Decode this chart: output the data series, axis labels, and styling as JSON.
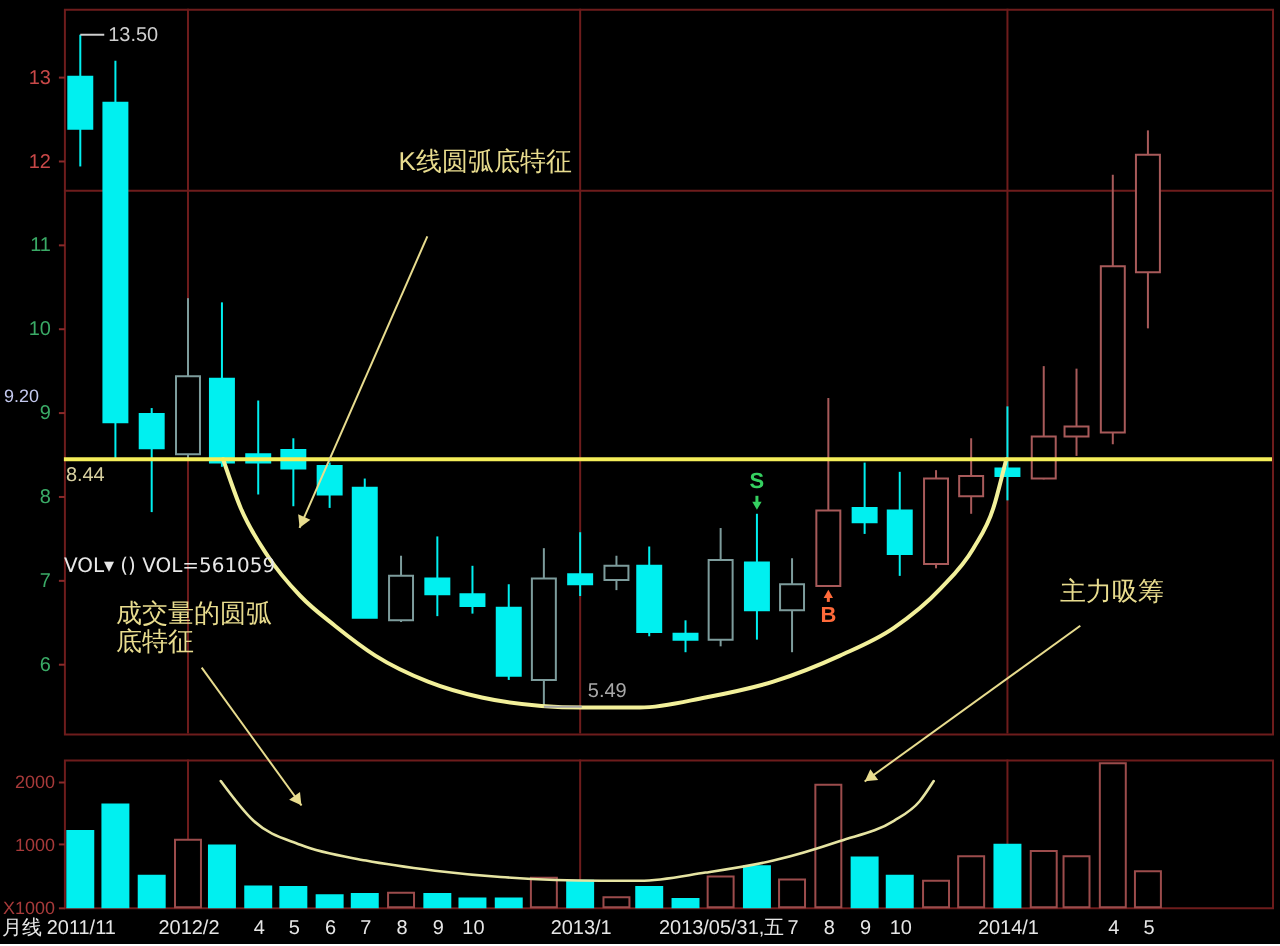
{
  "chart_data": [
    {
      "type": "candlestick",
      "x": [
        "2011-11",
        "2011-12",
        "2012-01",
        "2012-02",
        "2012-03",
        "2012-04",
        "2012-05",
        "2012-06",
        "2012-07",
        "2012-08",
        "2012-09",
        "2012-10",
        "2012-11",
        "2012-12",
        "2013-01",
        "2013-02",
        "2013-03",
        "2013-04",
        "2013-05",
        "2013-06",
        "2013-07",
        "2013-08",
        "2013-09",
        "2013-10",
        "2013-11",
        "2013-12",
        "2014-01",
        "2014-02",
        "2014-03",
        "2014-04",
        "2014-05"
      ],
      "series": [
        {
          "ohlc": [
            [
              13.0,
              13.5,
              11.93,
              12.38
            ],
            [
              12.69,
              13.19,
              8.45,
              8.88
            ],
            [
              8.98,
              9.05,
              7.81,
              8.57
            ],
            [
              8.5,
              10.36,
              8.45,
              9.43
            ],
            [
              9.4,
              10.31,
              8.35,
              8.4
            ],
            [
              8.5,
              9.14,
              8.02,
              8.4
            ],
            [
              8.55,
              8.69,
              7.88,
              8.33
            ],
            [
              8.36,
              8.4,
              7.86,
              8.02
            ],
            [
              8.1,
              8.21,
              6.55,
              6.55
            ],
            [
              6.52,
              7.29,
              6.5,
              7.05
            ],
            [
              7.02,
              7.52,
              6.57,
              6.83
            ],
            [
              6.83,
              7.17,
              6.6,
              6.69
            ],
            [
              6.67,
              6.95,
              5.81,
              5.86
            ],
            [
              5.81,
              7.38,
              5.49,
              7.02
            ],
            [
              7.07,
              7.57,
              6.81,
              6.95
            ],
            [
              7.0,
              7.29,
              6.88,
              7.17
            ],
            [
              7.17,
              7.4,
              6.33,
              6.38
            ],
            [
              6.36,
              6.52,
              6.14,
              6.29
            ],
            [
              6.29,
              7.62,
              6.21,
              7.24
            ],
            [
              7.21,
              7.79,
              6.29,
              6.64
            ],
            [
              6.64,
              7.26,
              6.14,
              6.95
            ],
            [
              6.93,
              9.17,
              6.93,
              7.83
            ],
            [
              7.86,
              8.4,
              7.55,
              7.69
            ],
            [
              7.83,
              8.29,
              7.05,
              7.31
            ],
            [
              7.19,
              8.31,
              7.14,
              8.21
            ],
            [
              8.0,
              8.69,
              7.79,
              8.24
            ],
            [
              8.33,
              9.07,
              7.95,
              8.24
            ],
            [
              8.21,
              9.55,
              8.2,
              8.71
            ],
            [
              8.71,
              9.52,
              8.48,
              8.83
            ],
            [
              8.76,
              11.83,
              8.62,
              10.74
            ],
            [
              10.67,
              12.36,
              10.0,
              12.07
            ]
          ],
          "colors": [
            "#00f0f0",
            "#00f0f0",
            "#00f0f0",
            "#7d9c9c",
            "#00f0f0",
            "#00f0f0",
            "#00f0f0",
            "#00f0f0",
            "#00f0f0",
            "#7d9c9c",
            "#00f0f0",
            "#00f0f0",
            "#00f0f0",
            "#7d9c9c",
            "#00f0f0",
            "#7d9c9c",
            "#00f0f0",
            "#00f0f0",
            "#7d9c9c",
            "#00f0f0",
            "#7d9c9c",
            "#a85a5a",
            "#00f0f0",
            "#00f0f0",
            "#a85a5a",
            "#a85a5a",
            "#00f0f0",
            "#a85a5a",
            "#a85a5a",
            "#a85a5a",
            "#a85a5a"
          ]
        },
        {
          "type": "line",
          "x": [
            "2012-03-02",
            "2012-03-17",
            "2012-04-09",
            "2012-05-07",
            "2012-06-06",
            "2012-07-10",
            "2012-08-24",
            "2012-10-09",
            "2012-11-29",
            "2013-01-03",
            "2013-02-21",
            "2013-04-18",
            "2013-06-15",
            "2013-08-11",
            "2013-09-26",
            "2013-11-05",
            "2013-12-03",
            "2013-12-20",
            "2013-12-29",
            "2013-12-31"
          ],
          "values": [
            8.44,
            7.86,
            7.29,
            6.81,
            6.45,
            6.1,
            5.79,
            5.6,
            5.5,
            5.48,
            5.48,
            5.6,
            5.79,
            6.1,
            6.43,
            6.9,
            7.38,
            7.86,
            8.33,
            8.44
          ],
          "color": "#f2f09a"
        }
      ],
      "xlim": [
        "2011-10-18",
        "2014-08-15"
      ],
      "ylim": [
        5.17,
        13.81
      ],
      "yticks": [
        6,
        7,
        8,
        9,
        10,
        11,
        12,
        13
      ],
      "tick_labels": "y",
      "ref_lines": [
        {
          "axis": "y",
          "value": 11.64,
          "color": "#6e1c1c"
        },
        {
          "axis": "x",
          "value": "2012-02",
          "color": "#6e1c1c"
        },
        {
          "axis": "x",
          "value": "2013-01",
          "color": "#6e1c1c"
        },
        {
          "axis": "x",
          "value": "2014-01",
          "color": "#6e1c1c"
        },
        {
          "axis": "y",
          "value": 8.44,
          "label": "8.44",
          "color": "#f5ee5a"
        }
      ],
      "annotations": [
        {
          "text": "13.50",
          "x": "2011-11",
          "y": 13.5
        },
        "K线圆弧底特征",
        "9.20",
        {
          "text": "S",
          "x": "2013-06",
          "y": 7.79
        },
        {
          "text": "B",
          "x": "2013-08",
          "y": 6.93
        },
        {
          "text": "5.49",
          "x": "2012-12",
          "y": 5.49
        }
      ]
    },
    {
      "type": "bar",
      "title": "VOL▾ () VOL=561059",
      "x": [
        "2011-11",
        "2011-12",
        "2012-01",
        "2012-02",
        "2012-03",
        "2012-04",
        "2012-05",
        "2012-06",
        "2012-07",
        "2012-08",
        "2012-09",
        "2012-10",
        "2012-11",
        "2012-12",
        "2013-01",
        "2013-02",
        "2013-03",
        "2013-04",
        "2013-05",
        "2013-06",
        "2013-07",
        "2013-08",
        "2013-09",
        "2013-10",
        "2013-11",
        "2013-12",
        "2014-01",
        "2014-02",
        "2014-03",
        "2014-04",
        "2014-05"
      ],
      "series": [
        {
          "values": [
            1210,
            1630,
            500,
            1070,
            980,
            330,
            320,
            190,
            210,
            230,
            210,
            140,
            140,
            470,
            420,
            160,
            320,
            130,
            490,
            650,
            440,
            1940,
            790,
            500,
            420,
            810,
            990,
            890,
            810,
            2280,
            570
          ],
          "colors": [
            "#00f0f0",
            "#00f0f0",
            "#00f0f0",
            "#9c4c4c",
            "#00f0f0",
            "#00f0f0",
            "#00f0f0",
            "#00f0f0",
            "#00f0f0",
            "#9c4c4c",
            "#00f0f0",
            "#00f0f0",
            "#00f0f0",
            "#9c4c4c",
            "#00f0f0",
            "#9c4c4c",
            "#00f0f0",
            "#00f0f0",
            "#9c4c4c",
            "#00f0f0",
            "#9c4c4c",
            "#9c4c4c",
            "#00f0f0",
            "#00f0f0",
            "#9c4c4c",
            "#9c4c4c",
            "#00f0f0",
            "#9c4c4c",
            "#9c4c4c",
            "#9c4c4c",
            "#9c4c4c"
          ]
        },
        {
          "type": "line",
          "x": [
            "2012-02-29",
            "2012-03-28",
            "2012-05-07",
            "2012-07-02",
            "2012-08-30",
            "2012-10-25",
            "2013-01-19",
            "2013-02-21",
            "2013-04-18",
            "2013-06-15",
            "2013-08-11",
            "2013-09-26",
            "2013-10-18",
            "2013-10-30"
          ],
          "values": [
            2000,
            1370,
            990,
            740,
            580,
            480,
            420,
            420,
            550,
            740,
            1050,
            1370,
            1680,
            2000
          ],
          "color": "#e6e4a2"
        }
      ],
      "xlim": [
        "2011-10-18",
        "2014-08-15"
      ],
      "xticks": [
        {
          "value": "2011-11",
          "label": "2011/11"
        },
        {
          "value": "2012-02",
          "label": "2012/2"
        },
        {
          "value": "2012-04",
          "label": "4"
        },
        {
          "value": "2012-05",
          "label": "5"
        },
        {
          "value": "2012-06",
          "label": "6"
        },
        {
          "value": "2012-07",
          "label": "7"
        },
        {
          "value": "2012-08",
          "label": "8"
        },
        {
          "value": "2012-09",
          "label": "9"
        },
        {
          "value": "2012-10",
          "label": "10"
        },
        {
          "value": "2013-01",
          "label": "2013/1"
        },
        {
          "value": "2013-05",
          "label": "2013/05/31,五"
        },
        {
          "value": "2013-07",
          "label": "7"
        },
        {
          "value": "2013-08",
          "label": "8"
        },
        {
          "value": "2013-09",
          "label": "9"
        },
        {
          "value": "2013-10",
          "label": "10"
        },
        {
          "value": "2014-01",
          "label": "2014/1"
        },
        {
          "value": "2014-04",
          "label": "4"
        },
        {
          "value": "2014-05",
          "label": "5"
        }
      ],
      "ylim": [
        0,
        2340
      ],
      "yticks": [
        {
          "value": 0,
          "label": "X1000"
        },
        1000,
        2000
      ],
      "ref_lines": [
        {
          "axis": "x",
          "value": "2012-02",
          "color": "#6e1c1c"
        },
        {
          "axis": "x",
          "value": "2013-01",
          "color": "#6e1c1c"
        },
        {
          "axis": "x",
          "value": "2014-01",
          "color": "#6e1c1c"
        }
      ],
      "annotations": [
        "成交量的圆弧底特征",
        "主力吸筹",
        "月线"
      ]
    }
  ]
}
